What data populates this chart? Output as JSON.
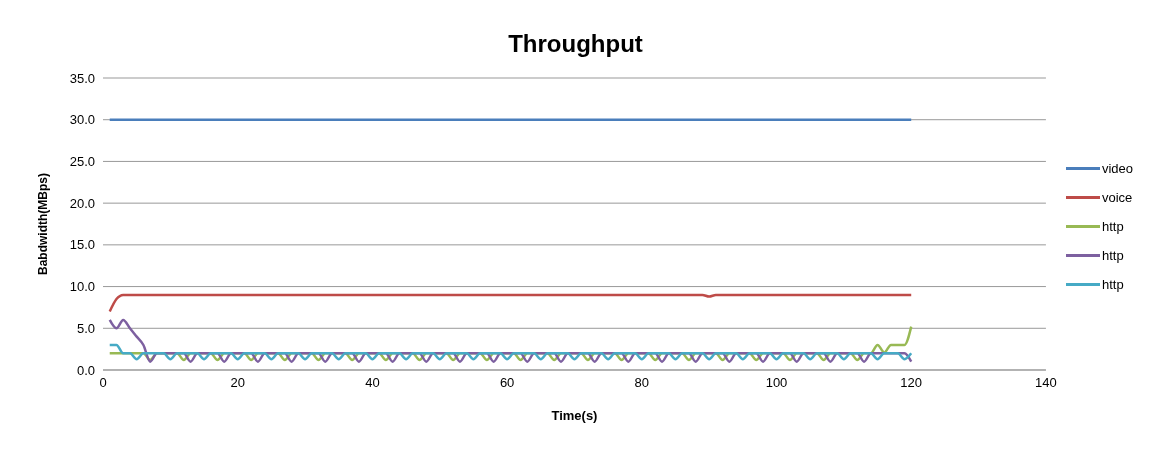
{
  "chart_data": {
    "type": "line",
    "title": "Throughput",
    "xlabel": "Time(s)",
    "ylabel": "Babdwidth(MBps)",
    "x": [
      1,
      2,
      3,
      4,
      5,
      6,
      7,
      8,
      9,
      10,
      11,
      12,
      13,
      14,
      15,
      16,
      17,
      18,
      19,
      20,
      21,
      22,
      23,
      24,
      25,
      26,
      27,
      28,
      29,
      30,
      31,
      32,
      33,
      34,
      35,
      36,
      37,
      38,
      39,
      40,
      41,
      42,
      43,
      44,
      45,
      46,
      47,
      48,
      49,
      50,
      51,
      52,
      53,
      54,
      55,
      56,
      57,
      58,
      59,
      60,
      61,
      62,
      63,
      64,
      65,
      66,
      67,
      68,
      69,
      70,
      71,
      72,
      73,
      74,
      75,
      76,
      77,
      78,
      79,
      80,
      81,
      82,
      83,
      84,
      85,
      86,
      87,
      88,
      89,
      90,
      91,
      92,
      93,
      94,
      95,
      96,
      97,
      98,
      99,
      100,
      101,
      102,
      103,
      104,
      105,
      106,
      107,
      108,
      109,
      110,
      111,
      112,
      113,
      114,
      115,
      116,
      117,
      118,
      119,
      120
    ],
    "series": [
      {
        "name": "video",
        "color": "#4a7ebb",
        "values": [
          30,
          30,
          30,
          30,
          30,
          30,
          30,
          30,
          30,
          30,
          30,
          30,
          30,
          30,
          30,
          30,
          30,
          30,
          30,
          30,
          30,
          30,
          30,
          30,
          30,
          30,
          30,
          30,
          30,
          30,
          30,
          30,
          30,
          30,
          30,
          30,
          30,
          30,
          30,
          30,
          30,
          30,
          30,
          30,
          30,
          30,
          30,
          30,
          30,
          30,
          30,
          30,
          30,
          30,
          30,
          30,
          30,
          30,
          30,
          30,
          30,
          30,
          30,
          30,
          30,
          30,
          30,
          30,
          30,
          30,
          30,
          30,
          30,
          30,
          30,
          30,
          30,
          30,
          30,
          30,
          30,
          30,
          30,
          30,
          30,
          30,
          30,
          30,
          30,
          30,
          30,
          30,
          30,
          30,
          30,
          30,
          30,
          30,
          30,
          30,
          30,
          30,
          30,
          30,
          30,
          30,
          30,
          30,
          30,
          30,
          30,
          30,
          30,
          30,
          30,
          30,
          30,
          30,
          30,
          30
        ]
      },
      {
        "name": "voice",
        "color": "#be4b48",
        "values": [
          7,
          8.5,
          9,
          9,
          9,
          9,
          9,
          9,
          9,
          9,
          9,
          9,
          9,
          9,
          9,
          9,
          9,
          9,
          9,
          9,
          9,
          9,
          9,
          9,
          9,
          9,
          9,
          9,
          9,
          9,
          9,
          9,
          9,
          9,
          9,
          9,
          9,
          9,
          9,
          9,
          9,
          9,
          9,
          9,
          9,
          9,
          9,
          9,
          9,
          9,
          9,
          9,
          9,
          9,
          9,
          9,
          9,
          9,
          9,
          9,
          9,
          9,
          9,
          9,
          9,
          9,
          9,
          9,
          9,
          9,
          9,
          9,
          9,
          9,
          9,
          9,
          9,
          9,
          9,
          9,
          9,
          9,
          9,
          9,
          9,
          9,
          9,
          9,
          9,
          8.8,
          9,
          9,
          9,
          9,
          9,
          9,
          9,
          9,
          9,
          9,
          9,
          9,
          9,
          9,
          9,
          9,
          9,
          9,
          9,
          9,
          9,
          9,
          9,
          9,
          9,
          9,
          9,
          9,
          9,
          9
        ]
      },
      {
        "name": "http",
        "color": "#98b954",
        "values": [
          2,
          2,
          2,
          2,
          2,
          2,
          1.2,
          2,
          2,
          2,
          2,
          1.2,
          2,
          2,
          2,
          2,
          1.2,
          2,
          2,
          2,
          2,
          1.2,
          2,
          2,
          2,
          2,
          1.2,
          2,
          2,
          2,
          2,
          1.2,
          2,
          2,
          2,
          2,
          1.2,
          2,
          2,
          2,
          2,
          1.2,
          2,
          2,
          2,
          2,
          1.2,
          2,
          2,
          2,
          2,
          1.2,
          2,
          2,
          2,
          2,
          1.2,
          2,
          2,
          2,
          2,
          1.2,
          2,
          2,
          2,
          2,
          1.2,
          2,
          2,
          2,
          2,
          1.2,
          2,
          2,
          2,
          2,
          1.2,
          2,
          2,
          2,
          2,
          1.2,
          2,
          2,
          2,
          2,
          1.2,
          2,
          2,
          2,
          2,
          1.2,
          2,
          2,
          2,
          2,
          1.2,
          2,
          2,
          2,
          2,
          1.2,
          2,
          2,
          2,
          2,
          1.2,
          2,
          2,
          2,
          2,
          1.2,
          2,
          2,
          3,
          2.1,
          3,
          3,
          3,
          5.2
        ]
      },
      {
        "name": "http",
        "color": "#7d60a0",
        "values": [
          6,
          5,
          6,
          5,
          4,
          3,
          1,
          2,
          2,
          2,
          2,
          2,
          1,
          2,
          2,
          2,
          2,
          1,
          2,
          2,
          2,
          2,
          1,
          2,
          2,
          2,
          2,
          1,
          2,
          2,
          2,
          2,
          1,
          2,
          2,
          2,
          2,
          1,
          2,
          2,
          2,
          2,
          1,
          2,
          2,
          2,
          2,
          1,
          2,
          2,
          2,
          2,
          1,
          2,
          2,
          2,
          2,
          1,
          2,
          2,
          2,
          2,
          1,
          2,
          2,
          2,
          2,
          1,
          2,
          2,
          2,
          2,
          1,
          2,
          2,
          2,
          2,
          1,
          2,
          2,
          2,
          2,
          1,
          2,
          2,
          2,
          2,
          1,
          2,
          2,
          2,
          2,
          1,
          2,
          2,
          2,
          2,
          1,
          2,
          2,
          2,
          2,
          1,
          2,
          2,
          2,
          2,
          1,
          2,
          2,
          2,
          2,
          1,
          2,
          2,
          2,
          2,
          2,
          2,
          1
        ]
      },
      {
        "name": "http",
        "color": "#46aac5",
        "values": [
          3,
          3,
          2,
          2,
          1.3,
          2,
          2,
          2,
          2,
          1.3,
          2,
          2,
          2,
          2,
          1.3,
          2,
          2,
          2,
          2,
          1.3,
          2,
          2,
          2,
          2,
          1.3,
          2,
          2,
          2,
          2,
          1.3,
          2,
          2,
          2,
          2,
          1.3,
          2,
          2,
          2,
          2,
          1.3,
          2,
          2,
          2,
          2,
          1.3,
          2,
          2,
          2,
          2,
          1.3,
          2,
          2,
          2,
          2,
          1.3,
          2,
          2,
          2,
          2,
          1.3,
          2,
          2,
          2,
          2,
          1.3,
          2,
          2,
          2,
          2,
          1.3,
          2,
          2,
          2,
          2,
          1.3,
          2,
          2,
          2,
          2,
          1.3,
          2,
          2,
          2,
          2,
          1.3,
          2,
          2,
          2,
          2,
          1.3,
          2,
          2,
          2,
          2,
          1.3,
          2,
          2,
          2,
          2,
          1.3,
          2,
          2,
          2,
          2,
          1.3,
          2,
          2,
          2,
          2,
          1.3,
          2,
          2,
          2,
          2,
          1.3,
          2,
          2,
          2,
          1.3,
          2
        ]
      }
    ],
    "xlim": [
      0,
      140
    ],
    "xticks": [
      0,
      20,
      40,
      60,
      80,
      100,
      120,
      140
    ],
    "ylim": [
      0,
      35
    ],
    "yticks": [
      {
        "value": 0,
        "label": "0.0"
      },
      {
        "value": 5,
        "label": "5.0"
      },
      {
        "value": 10,
        "label": "10.0"
      },
      {
        "value": 15,
        "label": "15.0"
      },
      {
        "value": 20,
        "label": "20.0"
      },
      {
        "value": 25,
        "label": "25.0"
      },
      {
        "value": 30,
        "label": "30.0"
      },
      {
        "value": 35,
        "label": "35.0"
      }
    ],
    "grid": "y",
    "legend": "right",
    "marker": "none",
    "line_style": "solid"
  }
}
